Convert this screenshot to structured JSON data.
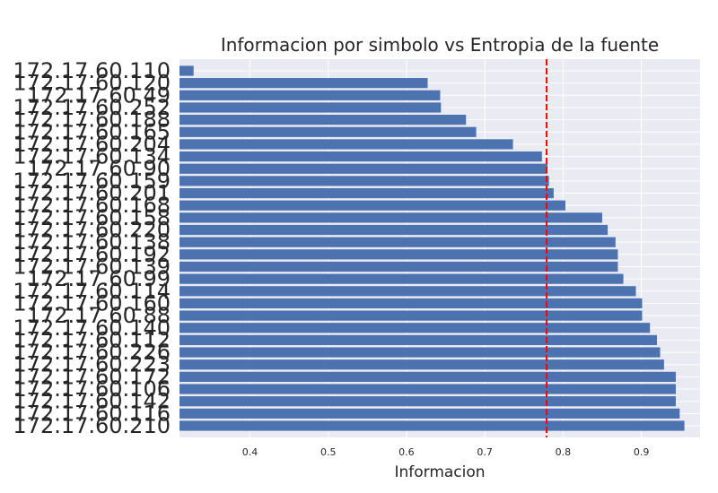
{
  "chart_data": {
    "type": "bar",
    "orientation": "horizontal",
    "title": "Informacion por simbolo vs Entropia de la fuente",
    "xlabel": "Informacion",
    "ylabel": "",
    "xlim": [
      0.31,
      0.975
    ],
    "xticks": [
      "0.4",
      "0.5",
      "0.6",
      "0.7",
      "0.8",
      "0.9"
    ],
    "grid": true,
    "bar_color": "#4c72b0",
    "line_color": "#ff0000",
    "background_color": "#eaeaf2",
    "entropy_line": 0.779,
    "categories": [
      "172.17.60.110",
      "172.17.60.120",
      "172.17.60.49",
      "172.17.60.252",
      "172.17.60.188",
      "172.17.60.165",
      "172.17.60.204",
      "172.17.60.134",
      "172.17.60.90",
      "172.17.60.159",
      "172.17.60.201",
      "172.17.60.168",
      "172.17.60.158",
      "172.17.60.220",
      "172.17.60.138",
      "172.17.60.192",
      "172.17.60.139",
      "172.17.60.99",
      "172.17.60.114",
      "172.17.60.160",
      "172.17.60.88",
      "172.17.60.140",
      "172.17.60.112",
      "172.17.60.226",
      "172.17.60.223",
      "172.17.60.172",
      "172.17.60.106",
      "172.17.60.142",
      "172.17.60.116",
      "172.17.60.210"
    ],
    "values": [
      0.328,
      0.627,
      0.643,
      0.644,
      0.676,
      0.689,
      0.736,
      0.773,
      0.78,
      0.782,
      0.788,
      0.803,
      0.85,
      0.857,
      0.867,
      0.87,
      0.87,
      0.877,
      0.893,
      0.901,
      0.901,
      0.911,
      0.92,
      0.924,
      0.929,
      0.944,
      0.944,
      0.944,
      0.949,
      0.955
    ]
  }
}
